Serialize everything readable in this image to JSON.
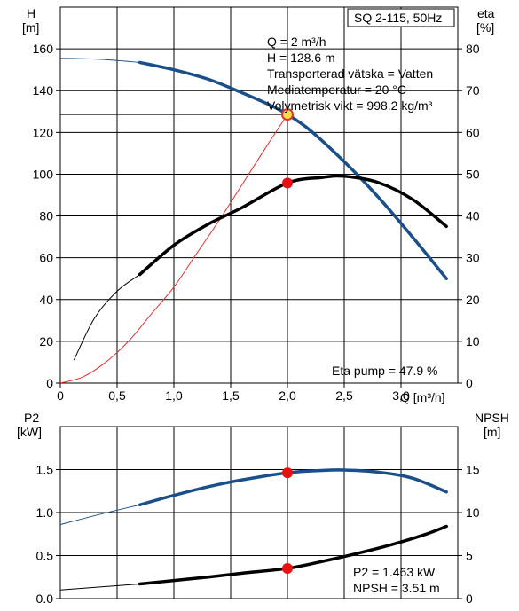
{
  "chart_data": [
    {
      "type": "line",
      "panel": "head-efficiency",
      "title_box": "SQ 2-115, 50Hz",
      "ylabel_left": "H",
      "ylabel_left_unit": "[m]",
      "ylabel_right": "eta",
      "ylabel_right_unit": "[%]",
      "xlabel": "Q [m³/h]",
      "xlim": [
        0,
        3.5
      ],
      "ylim_left": [
        0,
        180
      ],
      "ylim_right": [
        0,
        90
      ],
      "x_tick_labels": [
        "0",
        "0,5",
        "1,0",
        "1,5",
        "2,0",
        "2,5",
        "3,0"
      ],
      "x_tick_values": [
        0,
        0.5,
        1.0,
        1.5,
        2.0,
        2.5,
        3.0
      ],
      "y_left_ticks": [
        0,
        20,
        40,
        60,
        80,
        100,
        120,
        140,
        160
      ],
      "y_right_ticks": [
        0,
        10,
        20,
        30,
        40,
        50,
        60,
        70,
        80
      ],
      "grid": true,
      "info_lines": [
        "Q = 2 m³/h",
        "H = 128.6 m",
        "Transporterad vätska = Vatten",
        "Mediatemperatur = 20 °C",
        "Volymetrisk vikt = 998.2 kg/m³"
      ],
      "annotation": "Eta pump = 47.9 %",
      "series": [
        {
          "role": "head-curve",
          "axis": "left",
          "color": "#1a4f8a",
          "x": [
            0.0,
            0.35,
            0.7,
            1.0,
            1.3,
            1.6,
            1.85,
            2.0,
            2.2,
            2.5,
            2.8,
            3.1,
            3.4
          ],
          "y": [
            155.5,
            155.0,
            153.5,
            150.0,
            145.5,
            139.0,
            133.0,
            128.6,
            121.0,
            106.0,
            89.0,
            70.0,
            50.0
          ]
        },
        {
          "role": "efficiency-curve",
          "axis": "right",
          "color": "#000000",
          "x": [
            0.12,
            0.3,
            0.5,
            0.7,
            1.0,
            1.3,
            1.6,
            2.0,
            2.3,
            2.5,
            2.8,
            3.1,
            3.4
          ],
          "y": [
            5.5,
            15.5,
            22.0,
            26.0,
            33.0,
            38.0,
            42.0,
            47.9,
            49.2,
            49.5,
            48.0,
            44.0,
            37.5
          ]
        },
        {
          "role": "system-curve",
          "axis": "left",
          "color": "#e03030",
          "x": [
            0.0,
            0.2,
            0.4,
            0.6,
            0.8,
            1.0,
            1.2,
            1.4,
            1.6,
            1.8,
            2.0
          ],
          "y": [
            0,
            3,
            10,
            20,
            33,
            46,
            62,
            78,
            95,
            112,
            128.6
          ]
        }
      ],
      "markers": [
        {
          "role": "duty-point",
          "x": 2.0,
          "y": 128.6,
          "axis": "left",
          "color": "#f6e04a",
          "stroke": "#e03030"
        },
        {
          "role": "efficiency-point",
          "x": 2.0,
          "y": 47.9,
          "axis": "right",
          "color": "#e81010"
        }
      ]
    },
    {
      "type": "line",
      "panel": "power-npsh",
      "ylabel_left": "P2",
      "ylabel_left_unit": "[kW]",
      "ylabel_right": "NPSH",
      "ylabel_right_unit": "[m]",
      "xlim": [
        0,
        3.5
      ],
      "ylim_left": [
        0,
        2.0
      ],
      "ylim_right": [
        0,
        20
      ],
      "y_left_tick_labels": [
        "0.0",
        "0.5",
        "1.0",
        "1.5"
      ],
      "y_left_ticks": [
        0,
        0.5,
        1.0,
        1.5
      ],
      "y_right_ticks": [
        0,
        5,
        10,
        15
      ],
      "grid": true,
      "annotation_lines": [
        "P2 = 1.463 kW",
        "NPSH = 3.51 m"
      ],
      "series": [
        {
          "role": "power-curve",
          "axis": "left",
          "color": "#1a4f8a",
          "x": [
            0.0,
            0.35,
            0.7,
            1.0,
            1.3,
            1.6,
            2.0,
            2.3,
            2.5,
            2.8,
            3.1,
            3.4
          ],
          "y": [
            0.86,
            0.98,
            1.09,
            1.2,
            1.3,
            1.38,
            1.463,
            1.49,
            1.495,
            1.47,
            1.4,
            1.24
          ]
        },
        {
          "role": "npsh-curve",
          "axis": "right",
          "color": "#000000",
          "x": [
            0.0,
            0.35,
            0.7,
            1.0,
            1.3,
            1.6,
            2.0,
            2.3,
            2.6,
            2.9,
            3.2,
            3.4
          ],
          "y": [
            1.0,
            1.35,
            1.7,
            2.1,
            2.5,
            2.95,
            3.51,
            4.3,
            5.2,
            6.2,
            7.4,
            8.4
          ]
        }
      ],
      "markers": [
        {
          "role": "power-point",
          "x": 2.0,
          "y": 1.463,
          "axis": "left",
          "color": "#e81010"
        },
        {
          "role": "npsh-point",
          "x": 2.0,
          "y": 3.51,
          "axis": "right",
          "color": "#e81010"
        }
      ]
    }
  ]
}
